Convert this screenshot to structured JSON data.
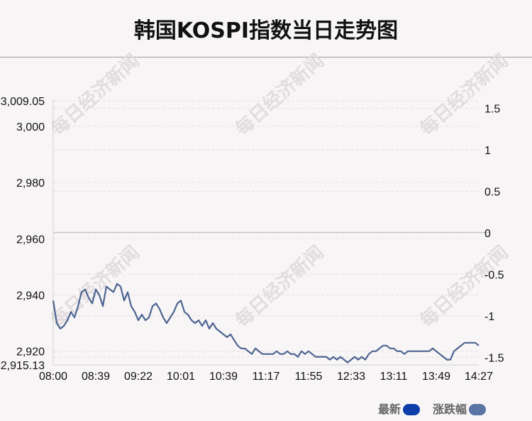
{
  "title": "韩国KOSPI指数当日走势图",
  "watermark": "每日经济新闻",
  "legend": {
    "latest_label": "最新",
    "latest_color": "#0d3da8",
    "change_label": "涨跌幅",
    "change_color": "#5a74a3"
  },
  "chart_data": {
    "type": "line",
    "x_ticks": [
      "08:00",
      "08:39",
      "09:22",
      "10:01",
      "10:39",
      "11:17",
      "11:55",
      "12:33",
      "13:11",
      "13:49",
      "14:27"
    ],
    "y_left_ticks": [
      "3,009.05",
      "3,000",
      "2,980",
      "2,960",
      "2,940",
      "2,920",
      "2,915.13"
    ],
    "y_right_ticks": [
      "1.5",
      "1",
      "0.5",
      "0",
      "-0.5",
      "-1",
      "-1.5"
    ],
    "ylim_left": [
      2915.13,
      3009.05
    ],
    "ylim_right": [
      -1.5919,
      1.5919
    ],
    "zero_value": 2962.22,
    "line_color": "#4d6591",
    "series": [
      {
        "values": [
          2938,
          2930,
          2928,
          2929,
          2931,
          2934,
          2932,
          2936,
          2941,
          2942,
          2939,
          2937,
          2942,
          2940,
          2936,
          2943,
          2942,
          2941,
          2944,
          2943,
          2938,
          2941,
          2936,
          2934,
          2931,
          2933,
          2931,
          2932,
          2936,
          2937,
          2935,
          2932,
          2930,
          2932,
          2934,
          2937,
          2938,
          2934,
          2933,
          2931,
          2930,
          2931,
          2929,
          2931,
          2928,
          2930,
          2928,
          2927,
          2926,
          2925,
          2926,
          2924,
          2922,
          2921,
          2921,
          2920,
          2919,
          2921,
          2920,
          2919,
          2919,
          2919,
          2919,
          2920,
          2919,
          2919,
          2920,
          2919,
          2919,
          2918,
          2920,
          2919,
          2920,
          2919,
          2918,
          2918,
          2918,
          2918,
          2917,
          2918,
          2917,
          2918,
          2917,
          2916,
          2917,
          2918,
          2917,
          2918,
          2917,
          2919,
          2920,
          2920,
          2921,
          2922,
          2922,
          2921,
          2921,
          2920,
          2920,
          2919,
          2920,
          2920,
          2920,
          2920,
          2920,
          2920,
          2920,
          2921,
          2920,
          2919,
          2918,
          2917,
          2917,
          2920,
          2921,
          2922,
          2923,
          2923,
          2923,
          2923,
          2922
        ],
        "x_range": [
          "08:00",
          "14:27"
        ]
      }
    ],
    "grid": true
  }
}
